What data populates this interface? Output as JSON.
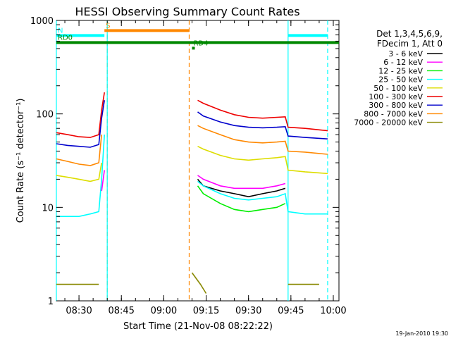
{
  "chart_data": {
    "type": "line",
    "title": "HESSI Observing Summary Count Rates",
    "xlabel": "Start Time (21-Nov-08 08:22:22)",
    "ylabel": "Count Rate (s⁻¹ detector⁻¹)",
    "yscale": "log",
    "ylim": [
      1,
      1000
    ],
    "xlim": [
      "08:22",
      "10:02"
    ],
    "x_ticks": [
      "08:30",
      "08:45",
      "09:00",
      "09:15",
      "09:30",
      "09:45",
      "10:00"
    ],
    "y_ticks": [
      "1",
      "10",
      "100",
      "1000"
    ],
    "grid": false,
    "legend_position": "right",
    "legend_header": [
      "Det 1,3,4,5,6,9,",
      "FDecim 1, Att 0"
    ],
    "footer_date": "19-Jan-2010 19:30",
    "series": [
      {
        "name": "3 - 6 keV",
        "color": "#000000",
        "segments": [
          [
            [
              "09:12",
              20
            ],
            [
              "09:14",
              17
            ],
            [
              "09:20",
              15
            ],
            [
              "09:25",
              14
            ],
            [
              "09:30",
              13
            ],
            [
              "09:35",
              14
            ],
            [
              "09:40",
              15
            ],
            [
              "09:43",
              16
            ]
          ]
        ]
      },
      {
        "name": "6 - 12 keV",
        "color": "#ff00ff",
        "segments": [
          [
            [
              "08:38",
              15
            ],
            [
              "08:39",
              25
            ]
          ],
          [
            [
              "09:12",
              22
            ],
            [
              "09:14",
              20
            ],
            [
              "09:20",
              17
            ],
            [
              "09:25",
              16
            ],
            [
              "09:30",
              16
            ],
            [
              "09:35",
              16
            ],
            [
              "09:40",
              17
            ],
            [
              "09:43",
              18
            ]
          ]
        ]
      },
      {
        "name": "12 - 25 keV",
        "color": "#00ee00",
        "segments": [
          [
            [
              "09:12",
              17
            ],
            [
              "09:14",
              14
            ],
            [
              "09:20",
              11
            ],
            [
              "09:25",
              9.5
            ],
            [
              "09:30",
              9
            ],
            [
              "09:35",
              9.5
            ],
            [
              "09:40",
              10
            ],
            [
              "09:43",
              11
            ]
          ]
        ]
      },
      {
        "name": "25 - 50 keV",
        "color": "#00ffff",
        "segments": [
          [
            [
              "08:22",
              8
            ],
            [
              "08:26",
              8
            ],
            [
              "08:30",
              8
            ],
            [
              "08:34",
              8.5
            ],
            [
              "08:37",
              9
            ],
            [
              "08:38",
              20
            ],
            [
              "08:39",
              60
            ]
          ],
          [
            [
              "09:12",
              19
            ],
            [
              "09:14",
              17
            ],
            [
              "09:20",
              14
            ],
            [
              "09:25",
              12.5
            ],
            [
              "09:30",
              12
            ],
            [
              "09:35",
              12.5
            ],
            [
              "09:40",
              13
            ],
            [
              "09:43",
              14
            ],
            [
              "09:44",
              9
            ],
            [
              "09:50",
              8.5
            ],
            [
              "09:58",
              8.5
            ]
          ]
        ]
      },
      {
        "name": "50 - 100 keV",
        "color": "#dddd00",
        "segments": [
          [
            [
              "08:22",
              22
            ],
            [
              "08:26",
              21
            ],
            [
              "08:30",
              20
            ],
            [
              "08:34",
              19
            ],
            [
              "08:37",
              20
            ],
            [
              "08:38",
              30
            ]
          ],
          [
            [
              "09:12",
              45
            ],
            [
              "09:14",
              42
            ],
            [
              "09:20",
              36
            ],
            [
              "09:25",
              33
            ],
            [
              "09:30",
              32
            ],
            [
              "09:35",
              33
            ],
            [
              "09:40",
              34
            ],
            [
              "09:43",
              35
            ],
            [
              "09:44",
              25
            ],
            [
              "09:50",
              24
            ],
            [
              "09:58",
              23
            ]
          ]
        ]
      },
      {
        "name": "100 - 300 keV",
        "color": "#ee0000",
        "segments": [
          [
            [
              "08:22",
              63
            ],
            [
              "08:26",
              60
            ],
            [
              "08:30",
              57
            ],
            [
              "08:34",
              56
            ],
            [
              "08:37",
              60
            ],
            [
              "08:38",
              110
            ],
            [
              "08:39",
              170
            ]
          ],
          [
            [
              "09:12",
              140
            ],
            [
              "09:14",
              130
            ],
            [
              "09:20",
              110
            ],
            [
              "09:25",
              98
            ],
            [
              "09:30",
              92
            ],
            [
              "09:35",
              90
            ],
            [
              "09:40",
              92
            ],
            [
              "09:43",
              93
            ],
            [
              "09:44",
              72
            ],
            [
              "09:50",
              70
            ],
            [
              "09:58",
              66
            ]
          ]
        ]
      },
      {
        "name": "300 - 800 keV",
        "color": "#0000cc",
        "segments": [
          [
            [
              "08:22",
              48
            ],
            [
              "08:26",
              46
            ],
            [
              "08:30",
              45
            ],
            [
              "08:34",
              44
            ],
            [
              "08:37",
              47
            ],
            [
              "08:38",
              90
            ],
            [
              "08:39",
              140
            ]
          ],
          [
            [
              "09:12",
              105
            ],
            [
              "09:14",
              95
            ],
            [
              "09:20",
              82
            ],
            [
              "09:25",
              75
            ],
            [
              "09:30",
              72
            ],
            [
              "09:35",
              71
            ],
            [
              "09:40",
              72
            ],
            [
              "09:43",
              73
            ],
            [
              "09:44",
              58
            ],
            [
              "09:50",
              56
            ],
            [
              "09:58",
              54
            ]
          ]
        ]
      },
      {
        "name": "800 - 7000 keV",
        "color": "#ff8800",
        "segments": [
          [
            [
              "08:22",
              33
            ],
            [
              "08:26",
              31
            ],
            [
              "08:30",
              29
            ],
            [
              "08:34",
              28
            ],
            [
              "08:37",
              30
            ],
            [
              "08:38",
              60
            ]
          ],
          [
            [
              "09:12",
              75
            ],
            [
              "09:14",
              70
            ],
            [
              "09:20",
              60
            ],
            [
              "09:25",
              53
            ],
            [
              "09:30",
              50
            ],
            [
              "09:35",
              49
            ],
            [
              "09:40",
              50
            ],
            [
              "09:43",
              51
            ],
            [
              "09:44",
              40
            ],
            [
              "09:50",
              39
            ],
            [
              "09:58",
              37
            ]
          ]
        ]
      },
      {
        "name": "7000 - 20000 keV",
        "color": "#888800",
        "segments": [
          [
            [
              "08:22",
              1.5
            ],
            [
              "08:30",
              1.5
            ],
            [
              "08:37",
              1.5
            ]
          ],
          [
            [
              "09:10",
              2
            ],
            [
              "09:13",
              1.5
            ],
            [
              "09:15",
              1.2
            ]
          ],
          [
            [
              "09:44",
              1.5
            ],
            [
              "09:50",
              1.5
            ],
            [
              "09:55",
              1.5
            ]
          ]
        ]
      }
    ],
    "flags": [
      {
        "label": "S",
        "color": "#ff8800",
        "value": 780,
        "start": "08:39",
        "end": "09:09"
      },
      {
        "label": "N",
        "color": "#00ffff",
        "value": 690,
        "start": "08:22",
        "end": "08:39"
      },
      {
        "label": "",
        "color": "#00ffff",
        "value": 690,
        "start": "09:44",
        "end": "09:58"
      },
      {
        "label": "RD0",
        "color": "#008800",
        "value": 580,
        "start": "08:22",
        "end": "10:02"
      },
      {
        "label": "RD4",
        "color": "#008800",
        "value": 505,
        "start": "09:10",
        "end": "09:11"
      }
    ],
    "markers": [
      {
        "at": "08:22",
        "color": "#00ffff",
        "style": "solid"
      },
      {
        "at": "08:40",
        "color": "#ff8800",
        "style": "dashed"
      },
      {
        "at": "08:40",
        "color": "#00ffff",
        "style": "solid"
      },
      {
        "at": "09:09",
        "color": "#ff8800",
        "style": "dashed"
      },
      {
        "at": "09:44",
        "color": "#00ffff",
        "style": "solid"
      },
      {
        "at": "09:58",
        "color": "#00ffff",
        "style": "dashed"
      }
    ]
  }
}
